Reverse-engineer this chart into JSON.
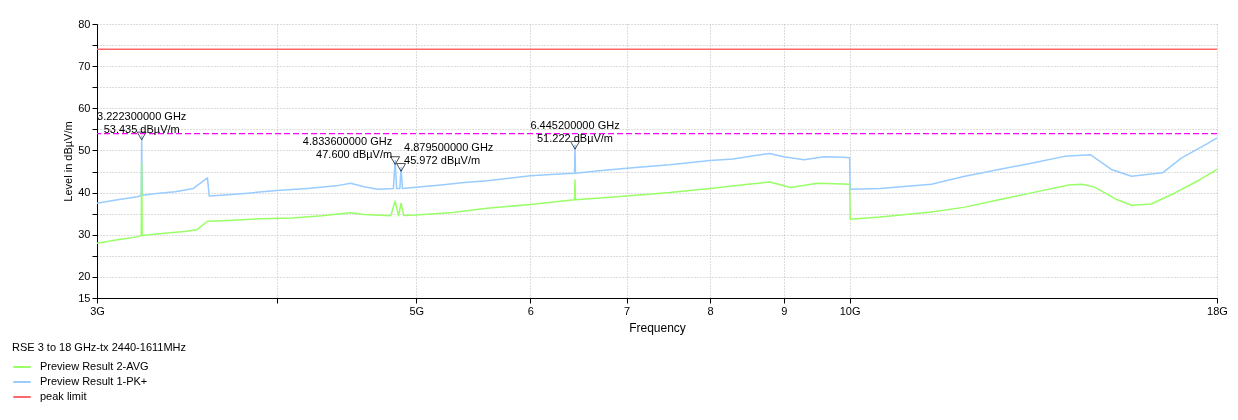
{
  "chart_data": {
    "type": "line",
    "xlabel": "Frequency",
    "ylabel": "Level in dBµV/m",
    "legend_title": "RSE 3 to 18 GHz-tx 2440-1611MHz",
    "legend": "bottom",
    "grid": true,
    "log": "x",
    "xlim": [
      3,
      18
    ],
    "xticks": [
      {
        "value": 3,
        "label": "3G"
      },
      {
        "value": 4,
        "label": null
      },
      {
        "value": 5,
        "label": "5G"
      },
      6,
      7,
      8,
      9,
      {
        "value": 10,
        "label": "10G"
      },
      {
        "value": 18,
        "label": "18G"
      }
    ],
    "ylim": [
      15,
      80
    ],
    "yticks": [
      15,
      20,
      {
        "value": 25,
        "label": null
      },
      30,
      {
        "value": 35,
        "label": null
      },
      40,
      {
        "value": 45,
        "label": null
      },
      50,
      {
        "value": 55,
        "label": null
      },
      60,
      {
        "value": 65,
        "label": null
      },
      70,
      {
        "value": 75,
        "label": null
      },
      80
    ],
    "series": [
      {
        "name": "Preview Result 2-AVG",
        "color": "#99ff66",
        "x": [
          3.0,
          3.1,
          3.2,
          3.22,
          3.2223,
          3.225,
          3.3,
          3.45,
          3.52,
          3.58,
          3.7,
          3.9,
          4.1,
          4.3,
          4.5,
          4.6,
          4.8,
          4.8336,
          4.86,
          4.8795,
          4.9,
          5.0,
          5.3,
          5.6,
          6.0,
          6.44,
          6.4452,
          6.45,
          7.0,
          7.5,
          8.0,
          8.5,
          8.8,
          9.1,
          9.5,
          10.0,
          10.01,
          10.5,
          11.4,
          12.0,
          12.7,
          13.4,
          14.2,
          14.5,
          14.8,
          15.3,
          15.7,
          16.2,
          16.8,
          17.5,
          18.0
        ],
        "values": [
          28.0,
          28.8,
          29.5,
          29.8,
          47.0,
          29.8,
          30.2,
          30.8,
          31.2,
          33.2,
          33.4,
          33.8,
          34.0,
          34.5,
          35.2,
          34.8,
          34.5,
          38.0,
          34.5,
          37.5,
          34.6,
          34.7,
          35.3,
          36.3,
          37.2,
          38.3,
          43.0,
          38.3,
          39.2,
          40.0,
          41.0,
          42.0,
          42.5,
          41.2,
          42.2,
          42.0,
          33.7,
          34.2,
          35.4,
          36.5,
          38.3,
          40.0,
          41.8,
          42.0,
          41.3,
          38.5,
          37.0,
          37.3,
          39.8,
          43.0,
          45.5
        ]
      },
      {
        "name": "Preview Result 1-PK+",
        "color": "#99ccff",
        "x": [
          3.0,
          3.1,
          3.2,
          3.22,
          3.2223,
          3.225,
          3.3,
          3.4,
          3.5,
          3.58,
          3.59,
          3.7,
          3.8,
          4.0,
          4.2,
          4.4,
          4.5,
          4.6,
          4.7,
          4.82,
          4.8336,
          4.845,
          4.87,
          4.8795,
          4.89,
          5.0,
          5.2,
          5.4,
          5.6,
          5.8,
          6.0,
          6.2,
          6.44,
          6.4452,
          6.45,
          6.7,
          7.0,
          7.5,
          8.0,
          8.3,
          8.6,
          8.8,
          9.0,
          9.3,
          9.6,
          9.9,
          10.0,
          10.01,
          10.5,
          11.4,
          12.0,
          12.7,
          13.4,
          14.1,
          14.7,
          15.2,
          15.7,
          16.5,
          17.0,
          17.7,
          18.0
        ],
        "values": [
          37.5,
          38.3,
          39.0,
          39.3,
          53.435,
          39.4,
          39.8,
          40.2,
          41.0,
          43.5,
          39.2,
          39.5,
          39.8,
          40.5,
          41.0,
          41.6,
          42.2,
          41.4,
          40.8,
          41.0,
          47.6,
          41.0,
          41.0,
          45.972,
          41.0,
          41.3,
          41.8,
          42.4,
          42.8,
          43.4,
          44.0,
          44.3,
          44.6,
          51.222,
          44.6,
          45.2,
          45.8,
          46.6,
          47.6,
          48.0,
          48.8,
          49.3,
          48.5,
          47.8,
          48.5,
          48.4,
          48.3,
          40.8,
          41.0,
          42.0,
          43.8,
          45.5,
          47.0,
          48.6,
          49.0,
          45.5,
          43.9,
          44.7,
          48.2,
          51.5,
          53.0
        ]
      },
      {
        "name": "peak limit",
        "color": "#ff6666",
        "x": [
          3,
          18
        ],
        "values": [
          74,
          74
        ]
      },
      {
        "type": "scatter",
        "marker": "triangle",
        "color": "#000000",
        "x": [
          3.2223,
          4.8336,
          4.8795,
          6.4452
        ],
        "values": [
          53.435,
          47.6,
          45.972,
          51.222
        ]
      }
    ],
    "ref_lines": [
      {
        "axis": "y",
        "value": 54,
        "label": null,
        "color": "#ff00ff",
        "line_style": "dashed"
      }
    ],
    "annotations": [
      {
        "text": "3.222300000 GHz\n53.435 dBµV/m",
        "x": 3.2223,
        "y": 53.435
      },
      {
        "text": "4.833600000 GHz\n47.600 dBµV/m",
        "x": 4.8336,
        "y": 47.6
      },
      {
        "text": "4.879500000 GHz\n45.972 dBµV/m",
        "x": 4.8795,
        "y": 45.972
      },
      {
        "text": "6.445200000 GHz\n51.222 dBµV/m",
        "x": 6.4452,
        "y": 51.222
      }
    ]
  }
}
